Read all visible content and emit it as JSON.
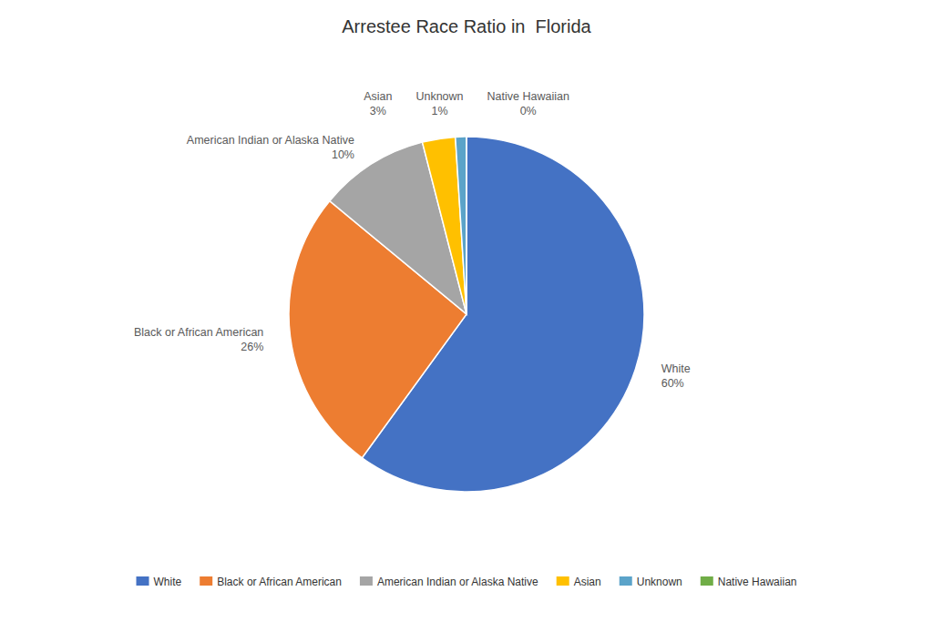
{
  "chart_data": {
    "type": "pie",
    "title": "Arrestee Race Ratio in  Florida",
    "categories": [
      "White",
      "Black or African American",
      "American Indian or Alaska Native",
      "Asian",
      "Unknown",
      "Native Hawaiian"
    ],
    "values": [
      60,
      26,
      10,
      3,
      1,
      0
    ],
    "value_labels": [
      "60%",
      "26%",
      "10%",
      "3%",
      "1%",
      "0%"
    ],
    "colors": [
      "#4472C4",
      "#ED7D31",
      "#A5A5A5",
      "#FFC000",
      "#5BA3C9",
      "#70AD47"
    ],
    "data_labels": true,
    "legend": "bottom"
  }
}
